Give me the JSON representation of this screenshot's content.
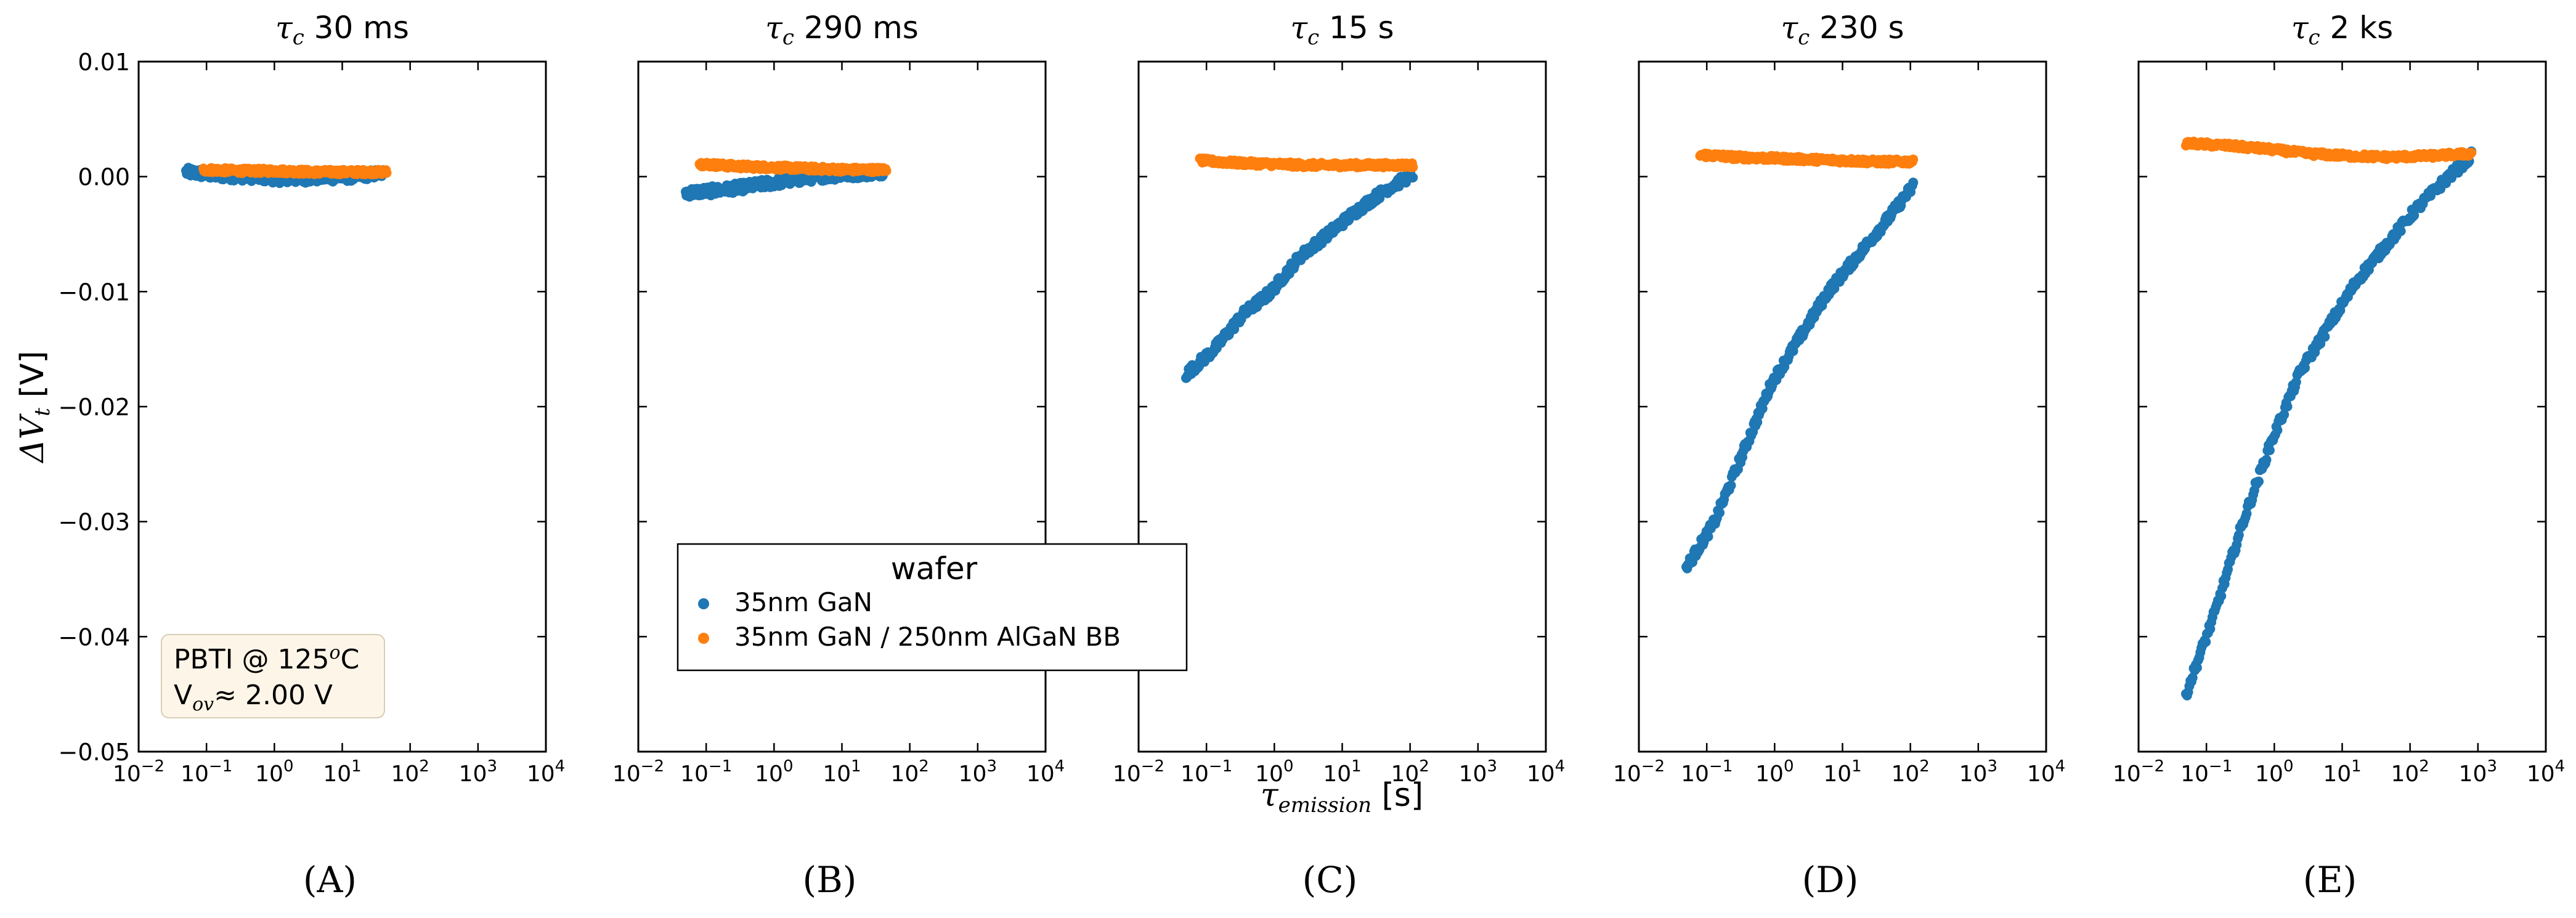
{
  "figure": {
    "ylabel": "ΔV",
    "ylabel_sub": "t",
    "ylabel_unit": "[V]",
    "xlabel": "τ",
    "xlabel_sub": "emission",
    "xlabel_unit": "[s]",
    "y_ticks": [
      "0.01",
      "0.00",
      "−0.01",
      "−0.02",
      "−0.03",
      "−0.04",
      "−0.05"
    ],
    "x_tick_base": "10",
    "x_tick_exponents": [
      "−2",
      "−1",
      "0",
      "1",
      "2",
      "3",
      "4"
    ]
  },
  "legend": {
    "title": "wafer",
    "items": [
      {
        "label": "35nm GaN",
        "color": "#1f77b4"
      },
      {
        "label": "35nm GaN / 250nm AlGaN BB",
        "color": "#ff7f0e"
      }
    ]
  },
  "annotation": {
    "line1_text": "PBTI @ 125",
    "line1_sup": "o",
    "line1_unit": "C",
    "line2_V": "V",
    "line2_sub": "ov",
    "line2_rest": "≈ 2.00 V"
  },
  "colors": {
    "blue": "#1f77b4",
    "orange": "#ff7f0e",
    "annotation_bg": "#fdf6e8"
  },
  "chart_data": [
    {
      "type": "scatter",
      "panel_label": "(A)",
      "title_sym": "τ",
      "title_sub": "c",
      "title_val": "30 ms",
      "xscale": "log",
      "xlim": [
        0.01,
        10000
      ],
      "ylim": [
        -0.05,
        0.01
      ],
      "xlabel": "τ_emission [s]",
      "ylabel": "ΔV_t [V]",
      "series": [
        {
          "name": "35nm GaN",
          "x_range": [
            0.05,
            40
          ],
          "y": [
            0.0004,
            0.0001,
            0.0,
            -0.0002,
            -0.0001,
            0.0,
            0.0003
          ],
          "noise": 0.0004
        },
        {
          "name": "35nm GaN / 250nm AlGaN BB",
          "x_range": [
            0.09,
            45
          ],
          "y": [
            0.0006,
            0.0005,
            0.0005,
            0.0004,
            0.0004,
            0.0004
          ],
          "noise": 0.0002
        }
      ]
    },
    {
      "type": "scatter",
      "panel_label": "(B)",
      "title_sym": "τ",
      "title_sub": "c",
      "title_val": "290 ms",
      "xscale": "log",
      "xlim": [
        0.01,
        10000
      ],
      "ylim": [
        -0.05,
        0.01
      ],
      "series": [
        {
          "name": "35nm GaN",
          "x_range": [
            0.05,
            40
          ],
          "y": [
            -0.0014,
            -0.0012,
            -0.0008,
            -0.0004,
            0.0,
            0.0002,
            0.0004
          ],
          "noise": 0.0004
        },
        {
          "name": "35nm GaN / 250nm AlGaN BB",
          "x_range": [
            0.08,
            45
          ],
          "y": [
            0.0011,
            0.0009,
            0.0008,
            0.0007,
            0.0006,
            0.0006
          ],
          "noise": 0.0002
        }
      ]
    },
    {
      "type": "scatter",
      "panel_label": "(C)",
      "title_sym": "τ",
      "title_sub": "c",
      "title_val": "15 s",
      "xscale": "log",
      "xlim": [
        0.01,
        10000
      ],
      "ylim": [
        -0.05,
        0.01
      ],
      "series": [
        {
          "name": "35nm GaN",
          "x_range": [
            0.05,
            110
          ],
          "y": [
            -0.0172,
            -0.015,
            -0.012,
            -0.01,
            -0.007,
            -0.005,
            -0.003,
            -0.0012,
            0.0002
          ],
          "noise": 0.0004
        },
        {
          "name": "35nm GaN / 250nm AlGaN BB",
          "x_range": [
            0.08,
            110
          ],
          "y": [
            0.0014,
            0.0012,
            0.0011,
            0.001,
            0.001,
            0.001,
            0.001
          ],
          "noise": 0.0002
        }
      ]
    },
    {
      "type": "scatter",
      "panel_label": "(D)",
      "title_sym": "τ",
      "title_sub": "c",
      "title_val": "230 s",
      "xscale": "log",
      "xlim": [
        0.01,
        10000
      ],
      "ylim": [
        -0.05,
        0.01
      ],
      "series": [
        {
          "name": "35nm GaN",
          "x_range": [
            0.05,
            110
          ],
          "y": [
            -0.034,
            -0.03,
            -0.024,
            -0.018,
            -0.014,
            -0.01,
            -0.007,
            -0.004,
            -0.0008
          ],
          "noise": 0.0004
        },
        {
          "name": "35nm GaN / 250nm AlGaN BB",
          "x_range": [
            0.08,
            110
          ],
          "y": [
            0.0019,
            0.0017,
            0.0016,
            0.0015,
            0.0014,
            0.0013,
            0.0013
          ],
          "noise": 0.0002
        }
      ]
    },
    {
      "type": "scatter",
      "panel_label": "(E)",
      "title_sym": "τ",
      "title_sub": "c",
      "title_val": "2 ks",
      "xscale": "log",
      "xlim": [
        0.01,
        10000
      ],
      "ylim": [
        -0.05,
        0.01
      ],
      "series": [
        {
          "name": "35nm GaN",
          "x_range": [
            0.05,
            800
          ],
          "y": [
            -0.045,
            -0.038,
            -0.03,
            -0.023,
            -0.017,
            -0.013,
            -0.009,
            -0.006,
            -0.003,
            -0.0005,
            0.0018
          ],
          "noise": 0.0004
        },
        {
          "name": "35nm GaN / 250nm AlGaN BB",
          "x_range": [
            0.05,
            800
          ],
          "y": [
            0.0029,
            0.0027,
            0.0024,
            0.002,
            0.0018,
            0.0017,
            0.0018,
            0.002
          ],
          "noise": 0.0002
        }
      ]
    }
  ]
}
